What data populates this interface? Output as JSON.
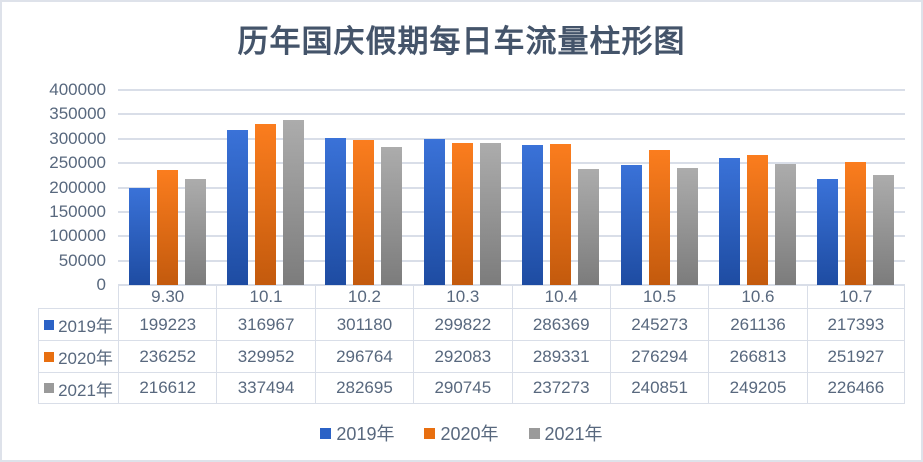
{
  "title": "历年国庆假期每日车流量柱形图",
  "chart_data": {
    "type": "bar",
    "title": "历年国庆假期每日车流量柱形图",
    "categories": [
      "9.30",
      "10.1",
      "10.2",
      "10.3",
      "10.4",
      "10.5",
      "10.6",
      "10.7"
    ],
    "series": [
      {
        "name": "2019年",
        "key_color": "#2B62C6",
        "gradient_top": "#3A72D8",
        "gradient_bottom": "#1E4CA2",
        "values": [
          199223,
          316967,
          301180,
          299822,
          286369,
          245273,
          261136,
          217393
        ]
      },
      {
        "name": "2020年",
        "key_color": "#E86F10",
        "gradient_top": "#FB7D1E",
        "gradient_bottom": "#C35A0D",
        "values": [
          236252,
          329952,
          296764,
          292083,
          289331,
          276294,
          266813,
          251927
        ]
      },
      {
        "name": "2021年",
        "key_color": "#9A9A9A",
        "gradient_top": "#ACACAC",
        "gradient_bottom": "#7C7C7C",
        "values": [
          216612,
          337494,
          282695,
          290745,
          237273,
          240851,
          249205,
          226466
        ]
      }
    ],
    "ylim": [
      0,
      400000
    ],
    "ytick_step": 50000,
    "yticks": [
      "400000",
      "350000",
      "300000",
      "250000",
      "200000",
      "150000",
      "100000",
      "50000",
      "0"
    ],
    "grid": true,
    "legend_position": "bottom",
    "data_table_shown": true
  },
  "colors": {
    "title_text": "#44546a",
    "axis_text": "#58687e",
    "gridline": "#d9dee8",
    "frame_border": "#dee2ea",
    "background": "#ffffff"
  }
}
